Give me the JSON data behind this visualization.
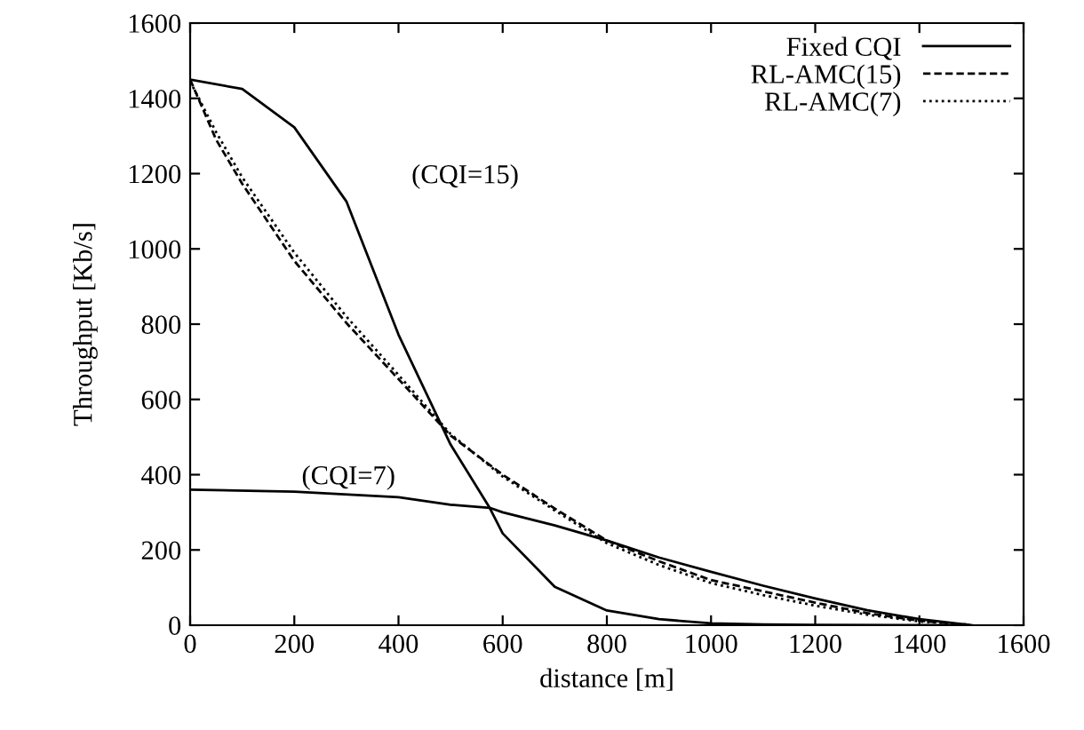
{
  "chart_data": {
    "type": "line",
    "xlabel": "distance [m]",
    "ylabel": "Throughput [Kb/s]",
    "xlim": [
      0,
      1600
    ],
    "ylim": [
      0,
      1600
    ],
    "xticks": [
      0,
      200,
      400,
      600,
      800,
      1000,
      1200,
      1400,
      1600
    ],
    "yticks": [
      0,
      200,
      400,
      600,
      800,
      1000,
      1200,
      1400,
      1600
    ],
    "grid": false,
    "legend": "top right",
    "marker": "none",
    "series": [
      {
        "name": "Fixed CQI",
        "color": "#000000",
        "line_style": "solid",
        "x": [
          0,
          100,
          200,
          300,
          400,
          500,
          575,
          600,
          700,
          800,
          900,
          1000,
          1100,
          1200,
          1490
        ],
        "values": [
          1450,
          1425,
          1323,
          1126,
          772,
          480,
          312,
          244,
          102,
          39,
          16,
          5,
          2,
          1,
          0
        ]
      },
      {
        "color": "#000000",
        "line_style": "solid",
        "x": [
          0,
          200,
          400,
          500,
          575,
          600,
          700,
          800,
          900,
          1000,
          1100,
          1200,
          1300,
          1400,
          1500
        ],
        "values": [
          360,
          355,
          340,
          320,
          312,
          300,
          265,
          225,
          180,
          142,
          105,
          71,
          40,
          16,
          0
        ]
      },
      {
        "name": "RL-AMC(15)",
        "color": "#000000",
        "line_style": "dashed",
        "x": [
          0,
          50,
          100,
          200,
          300,
          400,
          500,
          600,
          700,
          800,
          900,
          1000,
          1100,
          1200,
          1300,
          1400,
          1500
        ],
        "values": [
          1450,
          1290,
          1173,
          968,
          803,
          654,
          504,
          400,
          310,
          225,
          170,
          120,
          90,
          60,
          32,
          12,
          0
        ]
      },
      {
        "name": "RL-AMC(7)",
        "color": "#000000",
        "line_style": "dotted",
        "x": [
          0,
          50,
          100,
          200,
          300,
          400,
          500,
          600,
          700,
          800,
          900,
          1000,
          1100,
          1200,
          1300,
          1400,
          1490
        ],
        "values": [
          1445,
          1310,
          1190,
          990,
          820,
          665,
          508,
          395,
          305,
          218,
          160,
          112,
          80,
          52,
          28,
          10,
          2
        ]
      }
    ],
    "annotations": [
      "(CQI=15)",
      "(CQI=7)"
    ]
  }
}
